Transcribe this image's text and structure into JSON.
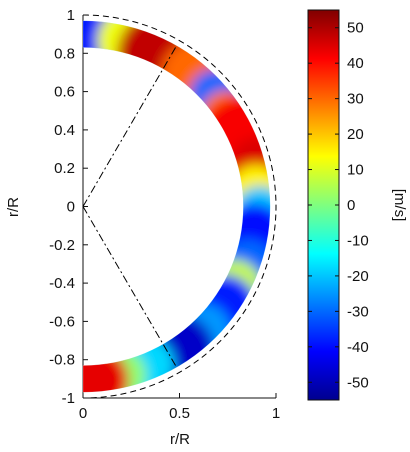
{
  "chart_data": {
    "type": "heatmap",
    "projection": "meridional half-annulus (r/R vs r/R)",
    "xlabel": "r/R",
    "ylabel": "r/R",
    "xlim": [
      0,
      1
    ],
    "ylim": [
      -1,
      1
    ],
    "xticks": [
      "0",
      "0.5",
      "1"
    ],
    "yticks": [
      "1",
      "0.8",
      "0.6",
      "0.4",
      "0.2",
      "0",
      "-0.2",
      "-0.4",
      "-0.6",
      "-0.8",
      "-1"
    ],
    "shell_inner_radius": 0.83,
    "shell_outer_radius": 0.97,
    "dashed_outer_circle_radius": 1.0,
    "dash_dot_rays_latitude_deg": [
      60,
      -60
    ],
    "colorbar": {
      "label": "[m/s]",
      "range": [
        -55,
        55
      ],
      "ticks": [
        "50",
        "40",
        "30",
        "20",
        "10",
        "0",
        "-10",
        "-20",
        "-30",
        "-40",
        "-50"
      ],
      "colormap": "jet"
    },
    "blobs": [
      {
        "lat": 86,
        "r": 0.9,
        "value": -38,
        "spread_deg": 5
      },
      {
        "lat": 74,
        "r": 0.9,
        "value": 12,
        "spread_deg": 5
      },
      {
        "lat": 62,
        "r": 0.89,
        "value": 48,
        "spread_deg": 7
      },
      {
        "lat": 50,
        "r": 0.9,
        "value": 30,
        "spread_deg": 5
      },
      {
        "lat": 40,
        "r": 0.9,
        "value": -30,
        "spread_deg": 4
      },
      {
        "lat": 32,
        "r": 0.88,
        "value": 28,
        "spread_deg": 4
      },
      {
        "lat": 22,
        "r": 0.9,
        "value": 42,
        "spread_deg": 7
      },
      {
        "lat": 14,
        "r": 0.93,
        "value": 45,
        "spread_deg": 4
      },
      {
        "lat": 5,
        "r": 0.9,
        "value": 15,
        "spread_deg": 4
      },
      {
        "lat": -2,
        "r": 0.92,
        "value": -20,
        "spread_deg": 4
      },
      {
        "lat": -10,
        "r": 0.9,
        "value": -40,
        "spread_deg": 5
      },
      {
        "lat": -20,
        "r": 0.91,
        "value": -30,
        "spread_deg": 4
      },
      {
        "lat": -28,
        "r": 0.89,
        "value": 8,
        "spread_deg": 4
      },
      {
        "lat": -36,
        "r": 0.9,
        "value": -38,
        "spread_deg": 5
      },
      {
        "lat": -46,
        "r": 0.9,
        "value": -25,
        "spread_deg": 4
      },
      {
        "lat": -58,
        "r": 0.9,
        "value": -48,
        "spread_deg": 6
      },
      {
        "lat": -68,
        "r": 0.89,
        "value": -18,
        "spread_deg": 4
      },
      {
        "lat": -78,
        "r": 0.9,
        "value": 2,
        "spread_deg": 4
      },
      {
        "lat": -86,
        "r": 0.91,
        "value": 44,
        "spread_deg": 5
      }
    ],
    "background_value": -14
  },
  "colors": {
    "dashed_circle": "#000000",
    "rays": "#000000"
  }
}
